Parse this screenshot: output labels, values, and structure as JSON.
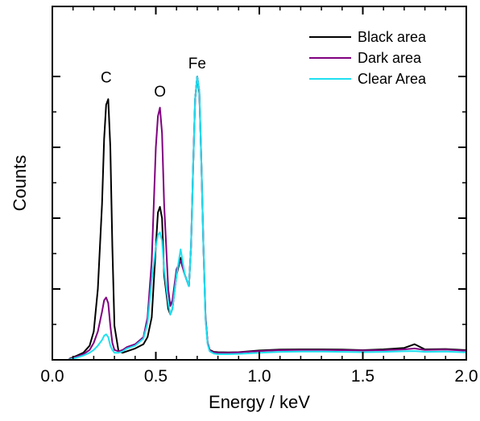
{
  "chart_data": {
    "type": "line",
    "xlabel": "Energy / keV",
    "ylabel": "Counts",
    "xlim": [
      0.0,
      2.0
    ],
    "ylim": [
      0,
      100
    ],
    "x_ticks": [
      "0.0",
      "0.5",
      "1.0",
      "1.5",
      "2.0"
    ],
    "y_tick_values": [
      0,
      25,
      50,
      75,
      100
    ],
    "y_tick_labels_shown": false,
    "grid": false,
    "legend_position": "top-right",
    "annotations": [
      {
        "text": "C",
        "x": 0.26,
        "y": 97
      },
      {
        "text": "O",
        "x": 0.52,
        "y": 92
      },
      {
        "text": "Fe",
        "x": 0.7,
        "y": 102
      }
    ],
    "series": [
      {
        "name": "Black area",
        "color": "#000000",
        "x": [
          0.08,
          0.12,
          0.15,
          0.18,
          0.2,
          0.22,
          0.24,
          0.25,
          0.26,
          0.27,
          0.28,
          0.29,
          0.3,
          0.32,
          0.34,
          0.36,
          0.4,
          0.44,
          0.46,
          0.48,
          0.5,
          0.51,
          0.52,
          0.53,
          0.54,
          0.56,
          0.57,
          0.58,
          0.6,
          0.62,
          0.64,
          0.66,
          0.67,
          0.68,
          0.69,
          0.7,
          0.71,
          0.72,
          0.73,
          0.74,
          0.75,
          0.76,
          0.78,
          0.8,
          0.85,
          0.9,
          1.0,
          1.1,
          1.2,
          1.3,
          1.4,
          1.5,
          1.6,
          1.7,
          1.75,
          1.8,
          1.9,
          2.0
        ],
        "y": [
          0.3,
          1.5,
          2.5,
          5,
          10,
          25,
          55,
          78,
          90,
          92,
          75,
          40,
          12,
          3,
          2.5,
          3,
          4,
          5.5,
          8,
          15,
          40,
          52,
          54,
          50,
          30,
          18,
          16,
          18,
          30,
          36,
          30,
          26,
          40,
          68,
          92,
          100,
          94,
          70,
          40,
          15,
          6,
          3.5,
          2.8,
          2.7,
          2.6,
          2.7,
          3.3,
          3.6,
          3.7,
          3.7,
          3.6,
          3.4,
          3.7,
          4.2,
          5.5,
          3.7,
          3.8,
          3.4
        ]
      },
      {
        "name": "Dark area",
        "color": "#800080",
        "x": [
          0.08,
          0.12,
          0.15,
          0.18,
          0.2,
          0.22,
          0.24,
          0.25,
          0.26,
          0.27,
          0.28,
          0.29,
          0.3,
          0.32,
          0.34,
          0.36,
          0.4,
          0.44,
          0.46,
          0.48,
          0.5,
          0.51,
          0.52,
          0.53,
          0.54,
          0.56,
          0.57,
          0.58,
          0.6,
          0.62,
          0.64,
          0.66,
          0.67,
          0.68,
          0.69,
          0.7,
          0.71,
          0.72,
          0.73,
          0.74,
          0.75,
          0.76,
          0.78,
          0.8,
          0.85,
          0.9,
          1.0,
          1.1,
          1.2,
          1.3,
          1.4,
          1.5,
          1.6,
          1.7,
          1.75,
          1.8,
          1.9,
          2.0
        ],
        "y": [
          0.2,
          1.2,
          2.0,
          3.5,
          6,
          10,
          17,
          21,
          22,
          20,
          12,
          6,
          3.5,
          3,
          3.5,
          4.5,
          5.5,
          8,
          15,
          35,
          75,
          86,
          89,
          80,
          55,
          25,
          19,
          21,
          32,
          35,
          30,
          26,
          40,
          68,
          92,
          100,
          95,
          70,
          40,
          15,
          6,
          3.3,
          2.6,
          2.5,
          2.5,
          2.6,
          3.1,
          3.4,
          3.5,
          3.5,
          3.4,
          3.3,
          3.4,
          3.7,
          4.0,
          3.5,
          3.6,
          3.2
        ]
      },
      {
        "name": "Clear Area",
        "color": "#1fe0f0",
        "x": [
          0.08,
          0.12,
          0.15,
          0.18,
          0.2,
          0.22,
          0.24,
          0.25,
          0.26,
          0.27,
          0.28,
          0.29,
          0.3,
          0.32,
          0.34,
          0.36,
          0.4,
          0.44,
          0.46,
          0.48,
          0.5,
          0.51,
          0.52,
          0.53,
          0.54,
          0.56,
          0.57,
          0.58,
          0.6,
          0.62,
          0.64,
          0.66,
          0.67,
          0.68,
          0.69,
          0.7,
          0.71,
          0.72,
          0.73,
          0.74,
          0.75,
          0.76,
          0.78,
          0.8,
          0.85,
          0.9,
          1.0,
          1.1,
          1.2,
          1.3,
          1.4,
          1.5,
          1.6,
          1.7,
          1.75,
          1.8,
          1.9,
          2.0
        ],
        "y": [
          0.1,
          0.8,
          1.5,
          2.5,
          3.5,
          5,
          7,
          8.5,
          9,
          8,
          5,
          3.5,
          2.5,
          2.5,
          3,
          4,
          5,
          7.5,
          13,
          28,
          40,
          44,
          45,
          42,
          32,
          20,
          16,
          18,
          30,
          39,
          30,
          26,
          40,
          68,
          92,
          100,
          95,
          70,
          40,
          14,
          5.5,
          3,
          2.2,
          2.0,
          2.0,
          2.1,
          2.5,
          2.8,
          2.9,
          2.9,
          2.8,
          2.7,
          2.8,
          3.0,
          3.1,
          2.8,
          2.9,
          2.6
        ]
      }
    ]
  }
}
